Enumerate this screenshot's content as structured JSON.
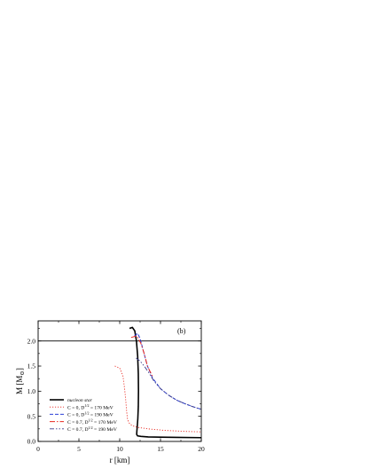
{
  "chart_data": {
    "type": "line",
    "panel_label": "(b)",
    "xlabel": "r [km]",
    "ylabel_main": "M [M",
    "ylabel_sub": "⊙",
    "ylabel_end": "]",
    "xlim": [
      0,
      20
    ],
    "ylim": [
      0,
      2.4
    ],
    "xticks": [
      0,
      5,
      10,
      15,
      20
    ],
    "xtick_labels": [
      "0",
      "5",
      "10",
      "15",
      "20"
    ],
    "yticks": [
      0.0,
      0.5,
      1.0,
      1.5,
      2.0
    ],
    "ytick_labels": [
      "0.0",
      "0.5",
      "1.0",
      "1.5",
      "2.0"
    ],
    "grid": false,
    "legend_position": "lower-left",
    "reference_line": {
      "y": 2.0,
      "color": "#000000"
    },
    "series": [
      {
        "name": "nucleon star",
        "legend_italic": true,
        "color": "#000000",
        "dash": "solid",
        "width": 1.6,
        "x": [
          11.2,
          11.55,
          11.85,
          12.05,
          12.2,
          12.28,
          12.3,
          12.28,
          12.22,
          12.15,
          12.1,
          12.08,
          12.2,
          12.6,
          13.5,
          15,
          17,
          20
        ],
        "y": [
          2.25,
          2.27,
          2.2,
          2.0,
          1.7,
          1.35,
          1.0,
          0.7,
          0.45,
          0.3,
          0.2,
          0.14,
          0.11,
          0.1,
          0.09,
          0.085,
          0.08,
          0.075
        ]
      },
      {
        "name": "C = 0, D^{1/2} = 170 MeV",
        "legend_pre": "C = 0, D",
        "legend_sup": "1/2",
        "legend_post": " = 170 MeV",
        "color": "#e8271e",
        "dash": "1.2,1.8",
        "width": 0.9,
        "x": [
          9.4,
          10.0,
          10.4,
          10.6,
          10.75,
          10.85,
          10.95,
          11.1,
          11.3,
          11.6,
          12.2,
          13.5,
          15.5,
          18,
          20
        ],
        "y": [
          1.5,
          1.46,
          1.3,
          1.05,
          0.8,
          0.6,
          0.45,
          0.38,
          0.34,
          0.31,
          0.28,
          0.25,
          0.22,
          0.2,
          0.19
        ]
      },
      {
        "name": "C = 0, D^{1/2} = 190 MeV",
        "legend_pre": "C = 0, D",
        "legend_sup": "1/2",
        "legend_post": " = 190 MeV",
        "color": "#2b3fd6",
        "dash": "4,2",
        "width": 1.0,
        "x": [
          11.8,
          12.2,
          12.5,
          12.9,
          13.4,
          14.0,
          15.0,
          16.0,
          17.0,
          18.0,
          19.0,
          20.0
        ],
        "y": [
          2.1,
          2.15,
          2.05,
          1.8,
          1.5,
          1.27,
          1.05,
          0.92,
          0.82,
          0.75,
          0.69,
          0.64
        ]
      },
      {
        "name": "C = 0.7, D^{1/2} = 170 MeV",
        "legend_pre": "C = 0.7, D",
        "legend_sup": "1/2",
        "legend_post": " = 170 MeV",
        "color": "#e8271e",
        "dash": "6,2,1.5,2",
        "width": 1.0,
        "x": [
          11.4,
          12.1,
          12.6,
          13.0,
          13.4,
          14.0
        ],
        "y": [
          2.07,
          2.1,
          1.95,
          1.75,
          1.5,
          1.3
        ]
      },
      {
        "name": "C = 0.7, D^{1/2} = 190 MeV",
        "legend_pre": "C = 0.7, D",
        "legend_sup": "1/2",
        "legend_post": " = 190 MeV",
        "color": "#3a3a8a",
        "dash": "5,2,1.5,2,1.5,2",
        "width": 0.9,
        "x": [
          12.0,
          12.5,
          13.0,
          13.6,
          14.2,
          15.0,
          16.0,
          17.0,
          18.0,
          19.0,
          20.0
        ],
        "y": [
          1.66,
          1.6,
          1.5,
          1.36,
          1.2,
          1.05,
          0.92,
          0.82,
          0.75,
          0.69,
          0.64
        ]
      }
    ]
  }
}
